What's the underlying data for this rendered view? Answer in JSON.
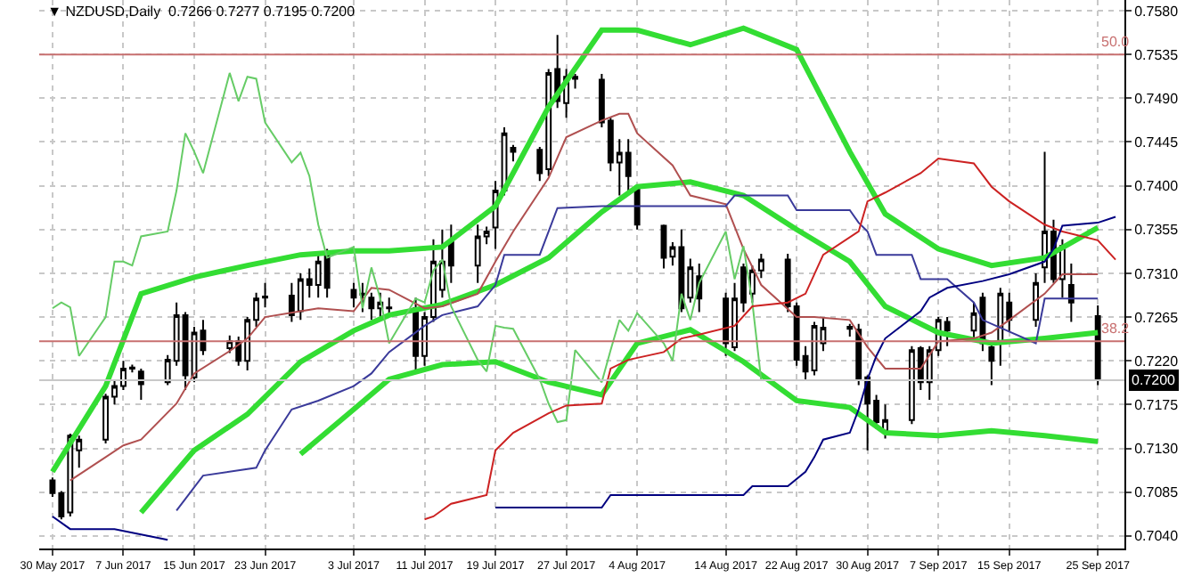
{
  "chart_data": {
    "type": "candlestick",
    "title": "▼ NZDUSD,Daily  0.7266 0.7277 0.7195 0.7200",
    "x": [
      "2017-05-30",
      "2017-05-31",
      "2017-06-01",
      "2017-06-02",
      "2017-06-05",
      "2017-06-06",
      "2017-06-07",
      "2017-06-08",
      "2017-06-09",
      "2017-06-12",
      "2017-06-13",
      "2017-06-14",
      "2017-06-15",
      "2017-06-16",
      "2017-06-19",
      "2017-06-20",
      "2017-06-21",
      "2017-06-22",
      "2017-06-23",
      "2017-06-26",
      "2017-06-27",
      "2017-06-28",
      "2017-06-29",
      "2017-06-30",
      "2017-07-03",
      "2017-07-04",
      "2017-07-05",
      "2017-07-06",
      "2017-07-07",
      "2017-07-10",
      "2017-07-11",
      "2017-07-12",
      "2017-07-13",
      "2017-07-14",
      "2017-07-17",
      "2017-07-18",
      "2017-07-19",
      "2017-07-20",
      "2017-07-21",
      "2017-07-24",
      "2017-07-25",
      "2017-07-26",
      "2017-07-27",
      "2017-07-28",
      "2017-07-31",
      "2017-08-01",
      "2017-08-02",
      "2017-08-03",
      "2017-08-04",
      "2017-08-07",
      "2017-08-08",
      "2017-08-09",
      "2017-08-10",
      "2017-08-11",
      "2017-08-14",
      "2017-08-15",
      "2017-08-16",
      "2017-08-17",
      "2017-08-18",
      "2017-08-21",
      "2017-08-22",
      "2017-08-23",
      "2017-08-24",
      "2017-08-25",
      "2017-08-28",
      "2017-08-29",
      "2017-08-30",
      "2017-08-31",
      "2017-09-01",
      "2017-09-04",
      "2017-09-05",
      "2017-09-06",
      "2017-09-07",
      "2017-09-08",
      "2017-09-11",
      "2017-09-12",
      "2017-09-13",
      "2017-09-14",
      "2017-09-15",
      "2017-09-18",
      "2017-09-19",
      "2017-09-20",
      "2017-09-21",
      "2017-09-22",
      "2017-09-25"
    ],
    "ohlc": [
      [
        0.7097,
        0.71,
        0.708,
        0.7084
      ],
      [
        0.7084,
        0.7086,
        0.7057,
        0.706
      ],
      [
        0.7064,
        0.7145,
        0.706,
        0.7143
      ],
      [
        0.7128,
        0.7143,
        0.711,
        0.7139
      ],
      [
        0.7139,
        0.7186,
        0.7135,
        0.7183
      ],
      [
        0.7183,
        0.72,
        0.7175,
        0.7194
      ],
      [
        0.7194,
        0.722,
        0.719,
        0.7212
      ],
      [
        0.7212,
        0.7216,
        0.7208,
        0.7213
      ],
      [
        0.7209,
        0.7212,
        0.718,
        0.7196
      ],
      [
        0.7198,
        0.7226,
        0.7195,
        0.7221
      ],
      [
        0.722,
        0.728,
        0.7215,
        0.7267
      ],
      [
        0.7267,
        0.727,
        0.719,
        0.7205
      ],
      [
        0.7203,
        0.7255,
        0.7198,
        0.7249
      ],
      [
        0.7251,
        0.7262,
        0.7226,
        0.7231
      ],
      [
        0.7233,
        0.7246,
        0.7228,
        0.724
      ],
      [
        0.724,
        0.7245,
        0.7215,
        0.722
      ],
      [
        0.722,
        0.7265,
        0.721,
        0.7262
      ],
      [
        0.7262,
        0.729,
        0.7255,
        0.7284
      ],
      [
        0.7285,
        0.73,
        0.7275,
        0.7286
      ],
      [
        0.7287,
        0.73,
        0.726,
        0.7267
      ],
      [
        0.7271,
        0.731,
        0.7262,
        0.7304
      ],
      [
        0.7304,
        0.7315,
        0.7285,
        0.7298
      ],
      [
        0.7298,
        0.733,
        0.7285,
        0.7322
      ],
      [
        0.7329,
        0.7335,
        0.7285,
        0.7295
      ],
      [
        0.7293,
        0.73,
        0.7275,
        0.7285
      ],
      [
        0.7289,
        0.73,
        0.727,
        0.7288
      ],
      [
        0.7285,
        0.729,
        0.7262,
        0.7274
      ],
      [
        0.7274,
        0.729,
        0.7265,
        0.728
      ],
      [
        0.7274,
        0.7285,
        0.7265,
        0.7275
      ],
      [
        0.7274,
        0.7285,
        0.721,
        0.7225
      ],
      [
        0.7225,
        0.727,
        0.7215,
        0.7265
      ],
      [
        0.7265,
        0.7345,
        0.726,
        0.7322
      ],
      [
        0.7293,
        0.7355,
        0.7285,
        0.7322
      ],
      [
        0.7342,
        0.736,
        0.73,
        0.7318
      ],
      [
        0.7318,
        0.736,
        0.73,
        0.7348
      ],
      [
        0.7348,
        0.7358,
        0.734,
        0.7353
      ],
      [
        0.7357,
        0.7405,
        0.7335,
        0.7395
      ],
      [
        0.7395,
        0.746,
        0.739,
        0.7454
      ],
      [
        0.7439,
        0.7442,
        0.7425,
        0.7435
      ],
      [
        0.7437,
        0.744,
        0.7405,
        0.7413
      ],
      [
        0.7417,
        0.752,
        0.741,
        0.7516
      ],
      [
        0.752,
        0.7555,
        0.748,
        0.7487
      ],
      [
        0.7485,
        0.752,
        0.747,
        0.7512
      ],
      [
        0.7512,
        0.7515,
        0.75,
        0.751
      ],
      [
        0.7509,
        0.7515,
        0.746,
        0.7465
      ],
      [
        0.7467,
        0.747,
        0.7415,
        0.7424
      ],
      [
        0.7424,
        0.7448,
        0.739,
        0.7434
      ],
      [
        0.7434,
        0.7448,
        0.7395,
        0.741
      ],
      [
        0.7397,
        0.74,
        0.7355,
        0.736
      ],
      [
        0.7359,
        0.736,
        0.7315,
        0.7326
      ],
      [
        0.7327,
        0.7342,
        0.7318,
        0.7337
      ],
      [
        0.7337,
        0.7355,
        0.727,
        0.7274
      ],
      [
        0.7285,
        0.7325,
        0.728,
        0.7316
      ],
      [
        0.7307,
        0.732,
        0.727,
        0.7284
      ],
      [
        0.7284,
        0.729,
        0.7225,
        0.7238
      ],
      [
        0.7234,
        0.73,
        0.723,
        0.7284
      ],
      [
        0.7316,
        0.732,
        0.727,
        0.728
      ],
      [
        0.7289,
        0.7318,
        0.728,
        0.7313
      ],
      [
        0.7313,
        0.733,
        0.7305,
        0.7324
      ],
      [
        0.7324,
        0.733,
        0.727,
        0.7276
      ],
      [
        0.7276,
        0.728,
        0.7215,
        0.7221
      ],
      [
        0.7225,
        0.7235,
        0.72,
        0.7209
      ],
      [
        0.721,
        0.726,
        0.7205,
        0.7256
      ],
      [
        0.7238,
        0.7265,
        0.723,
        0.7254
      ],
      [
        0.7255,
        0.7258,
        0.7245,
        0.7253
      ],
      [
        0.7252,
        0.7258,
        0.7195,
        0.7201
      ],
      [
        0.7203,
        0.7205,
        0.7128,
        0.7176
      ],
      [
        0.7179,
        0.7185,
        0.715,
        0.7157
      ],
      [
        0.7148,
        0.7175,
        0.714,
        0.7159
      ],
      [
        0.7159,
        0.7235,
        0.7155,
        0.7231
      ],
      [
        0.7233,
        0.7235,
        0.719,
        0.7198
      ],
      [
        0.7198,
        0.7235,
        0.718,
        0.7231
      ],
      [
        0.7231,
        0.7265,
        0.7225,
        0.7262
      ],
      [
        0.726,
        0.7265,
        0.7235,
        0.7251
      ],
      [
        0.7251,
        0.728,
        0.724,
        0.7269
      ],
      [
        0.7285,
        0.729,
        0.723,
        0.7238
      ],
      [
        0.7234,
        0.724,
        0.7195,
        0.722
      ],
      [
        0.7238,
        0.7295,
        0.7215,
        0.7289
      ],
      [
        0.728,
        0.729,
        0.725,
        0.7262
      ],
      [
        0.7262,
        0.731,
        0.7255,
        0.73
      ],
      [
        0.7316,
        0.7435,
        0.73,
        0.7353
      ],
      [
        0.7353,
        0.7365,
        0.73,
        0.7304
      ],
      [
        0.7304,
        0.7345,
        0.7285,
        0.7338
      ],
      [
        0.7298,
        0.732,
        0.726,
        0.728
      ],
      [
        0.7266,
        0.7277,
        0.7195,
        0.72
      ]
    ],
    "color": "#000000",
    "series": [
      {
        "type": "line",
        "color": "#33dd33",
        "x": [
          "2017-05-30",
          "2017-06-05",
          "2017-06-09",
          "2017-06-15",
          "2017-06-21",
          "2017-06-27",
          "2017-07-03",
          "2017-07-07",
          "2017-07-13",
          "2017-07-19",
          "2017-07-25",
          "2017-07-31",
          "2017-08-04",
          "2017-08-10",
          "2017-08-16",
          "2017-08-22",
          "2017-08-28",
          "2017-09-01",
          "2017-09-07",
          "2017-09-13",
          "2017-09-19",
          "2017-09-25"
        ],
        "values": [
          0.7106,
          0.7194,
          0.7289,
          0.7306,
          0.7318,
          0.7329,
          0.7333,
          0.7333,
          0.7337,
          0.7379,
          0.7481,
          0.756,
          0.756,
          0.7545,
          0.7562,
          0.754,
          0.7435,
          0.7371,
          0.7335,
          0.7318,
          0.7326,
          0.7357
        ]
      },
      {
        "type": "line",
        "color": "#33dd33",
        "x": [
          "2017-06-09",
          "2017-06-15",
          "2017-06-21",
          "2017-06-27",
          "2017-07-03",
          "2017-07-07",
          "2017-07-13",
          "2017-07-19",
          "2017-07-25",
          "2017-07-31",
          "2017-08-04",
          "2017-08-10",
          "2017-08-16",
          "2017-08-22",
          "2017-08-28",
          "2017-09-01",
          "2017-09-07",
          "2017-09-13",
          "2017-09-19",
          "2017-09-25"
        ],
        "values": [
          0.7064,
          0.7128,
          0.7165,
          0.7219,
          0.7251,
          0.7267,
          0.7278,
          0.7298,
          0.7326,
          0.7373,
          0.7399,
          0.7404,
          0.739,
          0.7355,
          0.7322,
          0.7276,
          0.7249,
          0.7238,
          0.7243,
          0.7249
        ]
      },
      {
        "type": "line",
        "color": "#33dd33",
        "x": [
          "2017-06-27",
          "2017-07-03",
          "2017-07-07",
          "2017-07-13",
          "2017-07-19",
          "2017-07-25",
          "2017-07-31",
          "2017-08-04",
          "2017-08-10",
          "2017-08-16",
          "2017-08-22",
          "2017-08-28",
          "2017-09-01",
          "2017-09-07",
          "2017-09-13",
          "2017-09-19",
          "2017-09-25"
        ],
        "values": [
          0.7124,
          0.717,
          0.7201,
          0.7216,
          0.7219,
          0.7198,
          0.7185,
          0.7238,
          0.7252,
          0.7219,
          0.7179,
          0.7172,
          0.7146,
          0.7143,
          0.7148,
          0.7143,
          0.7137
        ]
      },
      {
        "type": "line",
        "color": "#b05050",
        "x": [
          "2017-06-01",
          "2017-06-05",
          "2017-06-07",
          "2017-06-09",
          "2017-06-13",
          "2017-06-15",
          "2017-06-19",
          "2017-06-21",
          "2017-06-23",
          "2017-06-27",
          "2017-06-29",
          "2017-07-03",
          "2017-07-05",
          "2017-07-07",
          "2017-07-11",
          "2017-07-13",
          "2017-07-17",
          "2017-07-19",
          "2017-07-21",
          "2017-07-25",
          "2017-07-27",
          "2017-07-31",
          "2017-08-02",
          "2017-08-03",
          "2017-08-04",
          "2017-08-08",
          "2017-08-10",
          "2017-08-14",
          "2017-08-16",
          "2017-08-18",
          "2017-08-22",
          "2017-08-24",
          "2017-08-28",
          "2017-08-30",
          "2017-09-01",
          "2017-09-05",
          "2017-09-07",
          "2017-09-11",
          "2017-09-13",
          "2017-09-15",
          "2017-09-19",
          "2017-09-21",
          "2017-09-25"
        ],
        "values": [
          0.7097,
          0.7121,
          0.7133,
          0.7139,
          0.7176,
          0.7207,
          0.723,
          0.7243,
          0.7265,
          0.7271,
          0.7274,
          0.7271,
          0.7295,
          0.7293,
          0.7274,
          0.7276,
          0.7289,
          0.7322,
          0.7353,
          0.7408,
          0.745,
          0.7467,
          0.7474,
          0.7474,
          0.7454,
          0.7421,
          0.739,
          0.7381,
          0.7335,
          0.7298,
          0.7265,
          0.7265,
          0.7262,
          0.7234,
          0.7212,
          0.7212,
          0.724,
          0.7243,
          0.7249,
          0.7262,
          0.7289,
          0.7309,
          0.7309
        ]
      },
      {
        "type": "line",
        "color": "#3a3a9a",
        "x": [
          "2017-06-13",
          "2017-06-16",
          "2017-06-22",
          "2017-06-23",
          "2017-06-26",
          "2017-06-29",
          "2017-07-03",
          "2017-07-05",
          "2017-07-07",
          "2017-07-11",
          "2017-07-13",
          "2017-07-17",
          "2017-07-19",
          "2017-07-20",
          "2017-07-24",
          "2017-07-26",
          "2017-07-31",
          "2017-08-14",
          "2017-08-15",
          "2017-08-21",
          "2017-08-22",
          "2017-08-28",
          "2017-08-29",
          "2017-08-30",
          "2017-08-31",
          "2017-09-04",
          "2017-09-05",
          "2017-09-08",
          "2017-09-11",
          "2017-09-12",
          "2017-09-18",
          "2017-09-19",
          "2017-09-25"
        ],
        "values": [
          0.7066,
          0.7102,
          0.711,
          0.7128,
          0.717,
          0.7179,
          0.7194,
          0.7207,
          0.7229,
          0.7256,
          0.7267,
          0.7276,
          0.7298,
          0.7329,
          0.7329,
          0.7377,
          0.7379,
          0.7379,
          0.739,
          0.739,
          0.7375,
          0.7375,
          0.7362,
          0.7353,
          0.7329,
          0.7329,
          0.7304,
          0.7304,
          0.728,
          0.7262,
          0.7238,
          0.7284,
          0.7284
        ]
      },
      {
        "type": "line",
        "color": "#66cc66",
        "x": [
          "2017-05-30",
          "2017-05-31",
          "2017-06-01",
          "2017-06-02",
          "2017-06-05",
          "2017-06-06",
          "2017-06-07",
          "2017-06-08",
          "2017-06-09",
          "2017-06-12",
          "2017-06-13",
          "2017-06-14",
          "2017-06-15",
          "2017-06-16",
          "2017-06-19",
          "2017-06-20",
          "2017-06-21",
          "2017-06-22",
          "2017-06-23",
          "2017-06-26",
          "2017-06-27",
          "2017-06-28",
          "2017-06-29",
          "2017-06-30",
          "2017-07-03",
          "2017-07-04",
          "2017-07-05",
          "2017-07-06",
          "2017-07-07",
          "2017-07-10",
          "2017-07-11",
          "2017-07-12",
          "2017-07-13",
          "2017-07-14",
          "2017-07-17",
          "2017-07-18",
          "2017-07-19",
          "2017-07-20",
          "2017-07-21",
          "2017-07-24",
          "2017-07-25",
          "2017-07-26",
          "2017-07-27",
          "2017-07-28",
          "2017-07-31",
          "2017-08-01",
          "2017-08-02",
          "2017-08-03",
          "2017-08-04",
          "2017-08-07",
          "2017-08-08",
          "2017-08-09",
          "2017-08-10",
          "2017-08-11",
          "2017-08-14",
          "2017-08-15",
          "2017-08-16",
          "2017-08-17",
          "2017-08-18"
        ],
        "values": [
          0.7274,
          0.728,
          0.7275,
          0.7225,
          0.7265,
          0.7322,
          0.7322,
          0.7318,
          0.7348,
          0.7353,
          0.7395,
          0.7454,
          0.7435,
          0.7413,
          0.7516,
          0.7487,
          0.7512,
          0.751,
          0.7465,
          0.7424,
          0.7434,
          0.741,
          0.736,
          0.7326,
          0.7337,
          0.7274,
          0.7316,
          0.7284,
          0.7238,
          0.7284,
          0.728,
          0.7313,
          0.7324,
          0.7276,
          0.7221,
          0.7209,
          0.7256,
          0.7254,
          0.7253,
          0.7201,
          0.7176,
          0.7157,
          0.7159,
          0.7231,
          0.7198,
          0.7231,
          0.7262,
          0.7251,
          0.7269,
          0.7238,
          0.722,
          0.7289,
          0.7262,
          0.73,
          0.7353,
          0.7304,
          0.7338,
          0.728,
          0.72
        ]
      },
      {
        "type": "line",
        "color": "#cc2222",
        "x": [
          "2017-07-11",
          "2017-07-12",
          "2017-07-14",
          "2017-07-18",
          "2017-07-19",
          "2017-07-21",
          "2017-07-25",
          "2017-07-27",
          "2017-07-31",
          "2017-08-01",
          "2017-08-03",
          "2017-08-07",
          "2017-08-09",
          "2017-08-11",
          "2017-08-15",
          "2017-08-17",
          "2017-08-21",
          "2017-08-23",
          "2017-08-25",
          "2017-08-29",
          "2017-08-30",
          "2017-09-01",
          "2017-09-05",
          "2017-09-07",
          "2017-09-11",
          "2017-09-13",
          "2017-09-15",
          "2017-09-19",
          "2017-09-21",
          "2017-09-25",
          "2017-09-27"
        ],
        "values": [
          0.7057,
          0.706,
          0.7073,
          0.7082,
          0.7128,
          0.7146,
          0.7166,
          0.7174,
          0.7176,
          0.7212,
          0.7221,
          0.7229,
          0.7243,
          0.7247,
          0.7256,
          0.7276,
          0.728,
          0.7289,
          0.7329,
          0.7353,
          0.7384,
          0.7393,
          0.7413,
          0.7428,
          0.7423,
          0.7399,
          0.7384,
          0.736,
          0.7353,
          0.7344,
          0.7324
        ]
      },
      {
        "type": "line",
        "color": "#000080",
        "x": [
          "2017-05-30",
          "2017-06-01",
          "2017-06-06",
          "2017-06-12",
          "2017-06-13",
          "2017-07-19",
          "2017-07-31",
          "2017-08-01",
          "2017-08-16",
          "2017-08-17",
          "2017-08-21",
          "2017-08-23",
          "2017-08-24",
          "2017-08-25",
          "2017-08-28",
          "2017-08-29",
          "2017-08-30",
          "2017-08-31",
          "2017-09-01",
          "2017-09-05",
          "2017-09-06",
          "2017-09-08",
          "2017-09-12",
          "2017-09-15",
          "2017-09-19",
          "2017-09-20",
          "2017-09-21",
          "2017-09-25",
          "2017-09-27"
        ],
        "values": [
          0.706,
          0.7047,
          0.7047,
          0.7036,
          null,
          0.7069,
          0.7069,
          0.7082,
          0.7082,
          0.7091,
          0.7091,
          0.7106,
          0.7121,
          0.7139,
          0.7146,
          0.717,
          0.7201,
          0.7225,
          0.7243,
          0.7271,
          0.7285,
          0.7295,
          0.7302,
          0.7309,
          0.7322,
          0.7335,
          0.7359,
          0.7362,
          0.7368
        ]
      }
    ],
    "ref_lines": [
      {
        "axis": "y",
        "value": 0.7535,
        "color": "#c87070"
      },
      {
        "axis": "y",
        "value": 0.724,
        "color": "#c87070"
      },
      {
        "axis": "y",
        "value": 0.72,
        "label": "0.7200",
        "color": "#c8c8c8"
      }
    ],
    "annotations": [
      {
        "text": "50.0",
        "x": "2017-09-27",
        "y": 0.7535
      },
      {
        "text": "38.2",
        "x": "2017-09-27",
        "y": 0.724
      }
    ],
    "xlim": [
      "2017-05-28T12:00",
      "2017-09-28T00:00"
    ],
    "xticks": [
      {
        "value": "2017-05-30",
        "label": "30 May 2017"
      },
      {
        "value": "2017-06-07",
        "label": "7 Jun 2017"
      },
      {
        "value": "2017-06-15",
        "label": "15 Jun 2017"
      },
      {
        "value": "2017-06-23",
        "label": "23 Jun 2017"
      },
      {
        "value": "2017-07-03",
        "label": "3 Jul 2017"
      },
      {
        "value": "2017-07-11",
        "label": "11 Jul 2017"
      },
      {
        "value": "2017-07-19",
        "label": "19 Jul 2017"
      },
      {
        "value": "2017-07-27",
        "label": "27 Jul 2017"
      },
      {
        "value": "2017-08-04",
        "label": "4 Aug 2017"
      },
      {
        "value": "2017-08-14",
        "label": "14 Aug 2017"
      },
      {
        "value": "2017-08-22",
        "label": "22 Aug 2017"
      },
      {
        "value": "2017-08-30",
        "label": "30 Aug 2017"
      },
      {
        "value": "2017-09-07",
        "label": "7 Sep 2017"
      },
      {
        "value": "2017-09-15",
        "label": "15 Sep 2017"
      },
      {
        "value": "2017-09-25",
        "label": "25 Sep 2017"
      }
    ],
    "ylim": [
      0.7027,
      0.7591
    ],
    "yticks": [
      {
        "value": 0.704,
        "label": "0.7040"
      },
      0.7085,
      {
        "value": 0.713,
        "label": "0.7130"
      },
      0.7175,
      {
        "value": 0.722,
        "label": "0.7220"
      },
      0.7265,
      {
        "value": 0.731,
        "label": "0.7310"
      },
      0.7355,
      {
        "value": 0.74,
        "label": "0.7400"
      },
      0.7445,
      {
        "value": 0.749,
        "label": "0.7490"
      },
      0.7535,
      {
        "value": 0.758,
        "label": "0.7580"
      }
    ],
    "grid": true
  }
}
